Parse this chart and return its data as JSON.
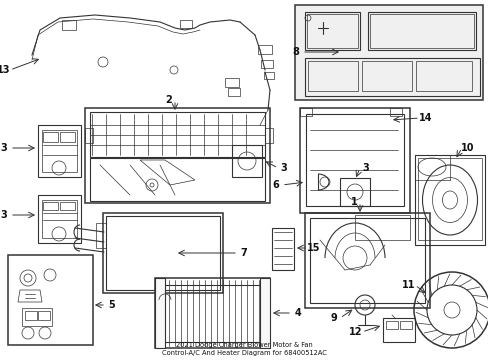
{
  "title": "2021 Dodge Charger Blower Motor & Fan\nControl-A/C And Heater Diagram for 68400512AC",
  "bg_color": "#ffffff",
  "line_color": "#333333",
  "fig_width": 4.89,
  "fig_height": 3.6,
  "dpi": 100
}
